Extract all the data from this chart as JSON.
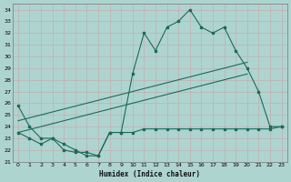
{
  "xlabel": "Humidex (Indice chaleur)",
  "bg_color": "#aed4d0",
  "grid_color": "#c0b0b0",
  "line_color": "#1a6b5a",
  "xlim": [
    -0.5,
    23.5
  ],
  "ylim": [
    21,
    34.5
  ],
  "yticks": [
    21,
    22,
    23,
    24,
    25,
    26,
    27,
    28,
    29,
    30,
    31,
    32,
    33,
    34
  ],
  "xticks": [
    0,
    1,
    2,
    3,
    4,
    5,
    6,
    7,
    8,
    9,
    10,
    11,
    12,
    13,
    14,
    15,
    16,
    17,
    18,
    19,
    20,
    21,
    22,
    23
  ],
  "series1_x": [
    0,
    1,
    2,
    3,
    4,
    5,
    6,
    7,
    8,
    9,
    10,
    11,
    12,
    13,
    14,
    15,
    16,
    17,
    18,
    19,
    20,
    21,
    22,
    23
  ],
  "series1_y": [
    25.8,
    24.0,
    23.0,
    23.0,
    22.5,
    22.0,
    21.5,
    21.5,
    23.5,
    23.5,
    28.5,
    32.0,
    30.5,
    32.5,
    33.0,
    34.0,
    32.5,
    32.0,
    32.5,
    30.5,
    29.0,
    27.0,
    24.0,
    24.0
  ],
  "series2_x": [
    0,
    1,
    2,
    3,
    4,
    5,
    6,
    7,
    8,
    9,
    10,
    11,
    12,
    13,
    14,
    15,
    16,
    17,
    18,
    19,
    20,
    21,
    22,
    23
  ],
  "series2_y": [
    23.5,
    23.0,
    22.5,
    23.0,
    22.0,
    21.8,
    21.8,
    21.5,
    23.5,
    23.5,
    23.5,
    23.8,
    23.8,
    23.8,
    23.8,
    23.8,
    23.8,
    23.8,
    23.8,
    23.8,
    23.8,
    23.8,
    23.8,
    24.0
  ],
  "trend1_x": [
    0,
    20
  ],
  "trend1_y": [
    24.5,
    29.5
  ],
  "trend2_x": [
    0,
    20
  ],
  "trend2_y": [
    23.5,
    28.5
  ]
}
